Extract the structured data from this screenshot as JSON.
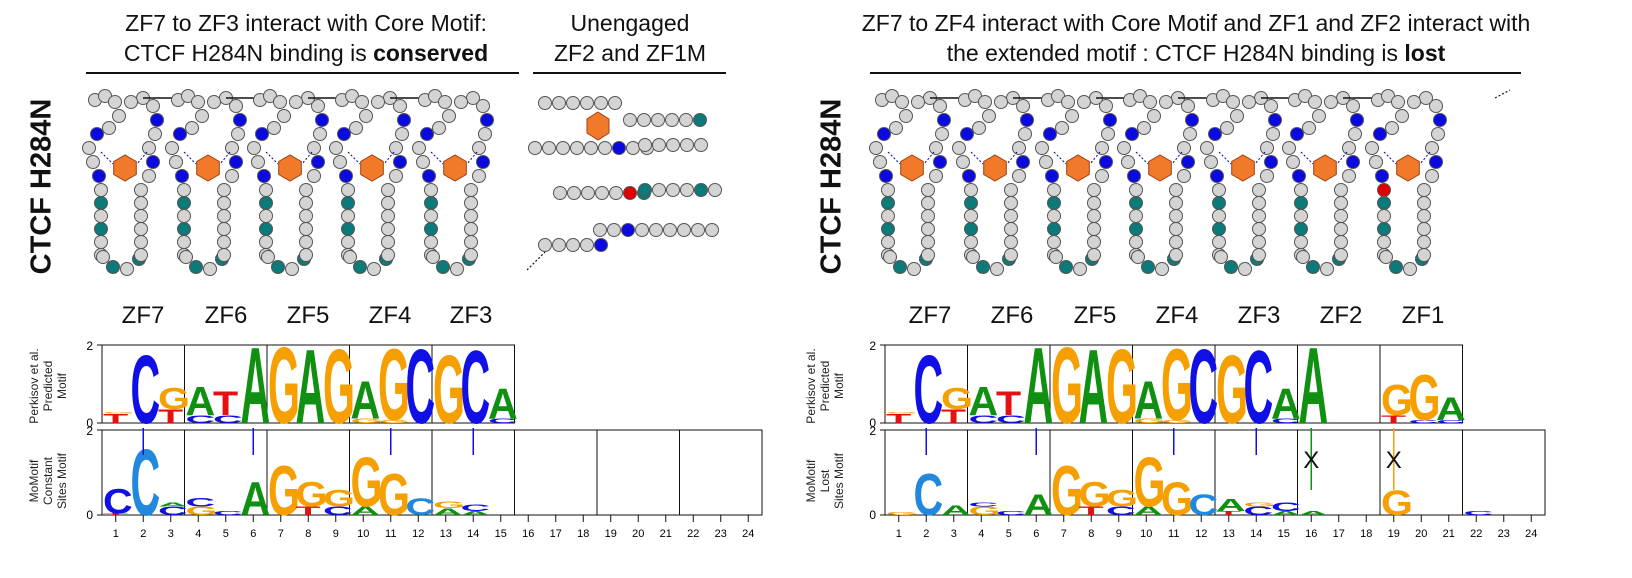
{
  "left": {
    "title_a_line1": "ZF7 to ZF3 interact with Core Motif:",
    "title_a_line2_pre": "CTCF H284N binding is ",
    "title_a_line2_bold": "conserved",
    "title_b_line1": "Unengaged",
    "title_b_line2": "ZF2 and ZF1M",
    "side_label": "CTCF H284N",
    "zf_labels": [
      "ZF7",
      "ZF6",
      "ZF5",
      "ZF4",
      "ZF3"
    ],
    "ylabel_top": [
      "Perkisov et al.",
      "Predicted",
      "Motif"
    ],
    "ylabel_bottom": [
      "MoMotif",
      "Constant",
      "Sites Motif"
    ]
  },
  "right": {
    "title_line1": "ZF7 to ZF4 interact with Core Motif and ZF1 and ZF2 interact with",
    "title_line2_pre": "the extended motif : CTCF H284N binding is ",
    "title_line2_bold": "lost",
    "side_label": "CTCF H284N",
    "zf_labels": [
      "ZF7",
      "ZF6",
      "ZF5",
      "ZF4",
      "ZF3",
      "ZF2",
      "ZF1"
    ],
    "ylabel_top": [
      "Perkisov et al.",
      "Predicted",
      "Motif"
    ],
    "ylabel_bottom": [
      "MoMotif",
      "Lost",
      "Sites Motif"
    ],
    "lost_marks": [
      "X",
      "X"
    ]
  },
  "axis": {
    "ytick_max": "2",
    "ytick_min": "0",
    "positions": [
      "1",
      "2",
      "3",
      "4",
      "5",
      "6",
      "7",
      "8",
      "9",
      "10",
      "11",
      "12",
      "13",
      "14",
      "15",
      "16",
      "17",
      "18",
      "19",
      "20",
      "21",
      "22",
      "23",
      "24"
    ]
  },
  "colors": {
    "A": "#109010",
    "C": "#1010e6",
    "G": "#f5a000",
    "T": "#e61010",
    "C_light": "#2288dd",
    "bead_gray": "#d4d4d4",
    "bead_blue": "#0a0ae0",
    "bead_teal": "#0b7a78",
    "bead_red": "#e00000",
    "zinc": "#f07a2a"
  }
}
